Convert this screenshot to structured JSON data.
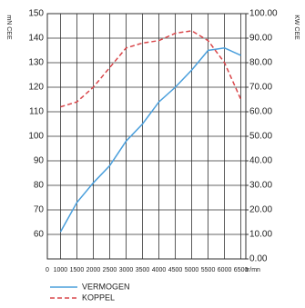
{
  "chart_data": {
    "type": "line",
    "y_label": "mN CEE",
    "y2_label": "KW CEE",
    "x_unit": "tr/mn",
    "origin_label": "0",
    "x": [
      1000,
      1500,
      2000,
      2500,
      3000,
      3500,
      4000,
      4500,
      5000,
      5500,
      6000,
      6500
    ],
    "series": [
      {
        "name": "VERMOGEN",
        "color": "#4a9fdc",
        "dash": false,
        "axis": "y2",
        "values": [
          11,
          23,
          31,
          38,
          48,
          55,
          64,
          70,
          77,
          85,
          86,
          83
        ]
      },
      {
        "name": "KOPPEL",
        "color": "#d9464a",
        "dash": true,
        "axis": "y",
        "values": [
          112,
          114,
          120,
          128,
          136,
          138,
          139,
          142,
          143,
          139,
          130,
          115
        ]
      }
    ],
    "xlim": [
      600,
      6650
    ],
    "xticks": [
      1000,
      1500,
      2000,
      2500,
      3000,
      3500,
      4000,
      4500,
      5000,
      5500,
      6000,
      6500
    ],
    "ylim": [
      50,
      150
    ],
    "yticks": [
      60,
      70,
      80,
      90,
      100,
      110,
      120,
      130,
      140,
      150
    ],
    "y2lim": [
      0,
      100
    ],
    "y2ticks": [
      {
        "value": 0,
        "label": "0.00"
      },
      {
        "value": 10,
        "label": "10.00"
      },
      {
        "value": 20,
        "label": "20.00"
      },
      {
        "value": 30,
        "label": "30.00"
      },
      {
        "value": 40,
        "label": "40.00"
      },
      {
        "value": 50,
        "label": "50.00"
      },
      {
        "value": 60,
        "label": "60.00"
      },
      {
        "value": 70,
        "label": "70.00"
      },
      {
        "value": 80,
        "label": "80.00"
      },
      {
        "value": 90,
        "label": "90.00"
      },
      {
        "value": 100,
        "label": "100.00"
      }
    ],
    "grid": true,
    "legend": "bottom"
  }
}
